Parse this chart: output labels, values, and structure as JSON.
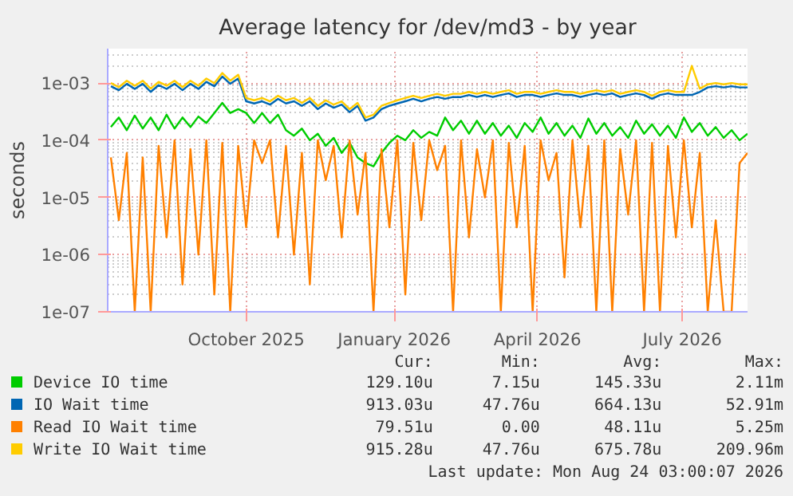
{
  "chart_data": {
    "type": "line",
    "title": "Average latency for /dev/md3 - by year",
    "ylabel": "seconds",
    "log": true,
    "grid": true,
    "legend": "bottom",
    "marker": "none",
    "line_style": "solid",
    "x": [
      "2025-07-20",
      "2025-07-25",
      "2025-07-30",
      "2025-08-04",
      "2025-08-09",
      "2025-08-14",
      "2025-08-19",
      "2025-08-24",
      "2025-08-29",
      "2025-09-03",
      "2025-09-08",
      "2025-09-13",
      "2025-09-18",
      "2025-09-23",
      "2025-09-28",
      "2025-10-03",
      "2025-10-08",
      "2025-10-13",
      "2025-10-18",
      "2025-10-23",
      "2025-10-28",
      "2025-11-02",
      "2025-11-07",
      "2025-11-12",
      "2025-11-17",
      "2025-11-22",
      "2025-11-27",
      "2025-12-02",
      "2025-12-07",
      "2025-12-12",
      "2025-12-17",
      "2025-12-22",
      "2025-12-27",
      "2026-01-01",
      "2026-01-06",
      "2026-01-11",
      "2026-01-16",
      "2026-01-21",
      "2026-01-26",
      "2026-01-31",
      "2026-02-05",
      "2026-02-10",
      "2026-02-15",
      "2026-02-20",
      "2026-02-25",
      "2026-03-02",
      "2026-03-07",
      "2026-03-12",
      "2026-03-17",
      "2026-03-22",
      "2026-03-27",
      "2026-04-01",
      "2026-04-06",
      "2026-04-11",
      "2026-04-16",
      "2026-04-21",
      "2026-04-26",
      "2026-05-01",
      "2026-05-06",
      "2026-05-11",
      "2026-05-16",
      "2026-05-21",
      "2026-05-26",
      "2026-05-31",
      "2026-06-05",
      "2026-06-10",
      "2026-06-15",
      "2026-06-20",
      "2026-06-25",
      "2026-06-30",
      "2026-07-05",
      "2026-07-10",
      "2026-07-15",
      "2026-07-20",
      "2026-07-25",
      "2026-07-30",
      "2026-08-04",
      "2026-08-09",
      "2026-08-14",
      "2026-08-19",
      "2026-08-24"
    ],
    "xlim": [
      "2025-07-18",
      "2026-08-24"
    ],
    "xticks": [
      {
        "value": "2025-10-13",
        "label": "October 2025"
      },
      {
        "value": "2026-01-14",
        "label": "January 2026"
      },
      {
        "value": "2026-04-14",
        "label": "April 2026"
      },
      {
        "value": "2026-07-14",
        "label": "July 2026"
      }
    ],
    "ylim": [
      1e-07,
      0.004
    ],
    "yticks": [
      {
        "value": 1e-07,
        "label": "1e-07"
      },
      {
        "value": 1e-06,
        "label": "1e-06"
      },
      {
        "value": 1e-05,
        "label": "1e-05"
      },
      {
        "value": 0.0001,
        "label": "1e-04"
      },
      {
        "value": 0.001,
        "label": "1e-03"
      }
    ],
    "series": [
      {
        "name": "Device IO time",
        "color": "#00cc00",
        "values": [
          0.00017,
          0.00025,
          0.00015,
          0.00027,
          0.00016,
          0.00025,
          0.00015,
          0.00028,
          0.00016,
          0.00025,
          0.00017,
          0.00026,
          0.0002,
          0.0003,
          0.00045,
          0.0003,
          0.00035,
          0.0003,
          0.0002,
          0.0003,
          0.0002,
          0.00028,
          0.00015,
          0.00012,
          0.00016,
          0.0001,
          0.00013,
          8e-05,
          0.00011,
          6e-05,
          9e-05,
          5e-05,
          4e-05,
          3.5e-05,
          6e-05,
          9e-05,
          0.00012,
          0.0001,
          0.00015,
          0.00011,
          0.00014,
          0.00012,
          0.00025,
          0.00015,
          0.00022,
          0.00013,
          0.00022,
          0.00013,
          0.0002,
          0.00012,
          0.00018,
          0.00011,
          0.0002,
          0.00014,
          0.00025,
          0.00013,
          0.0002,
          0.00012,
          0.00018,
          0.00011,
          0.00024,
          0.00013,
          0.0002,
          0.00012,
          0.00017,
          0.00011,
          0.00022,
          0.00013,
          0.00019,
          0.00012,
          0.00018,
          0.00011,
          0.00025,
          0.00014,
          0.0002,
          0.00012,
          0.00017,
          0.00011,
          0.00015,
          0.0001,
          0.00013
        ]
      },
      {
        "name": "IO Wait time",
        "color": "#0066b3",
        "values": [
          0.00088,
          0.00075,
          0.00097,
          0.00079,
          0.00097,
          0.0007,
          0.00092,
          0.00079,
          0.00097,
          0.00075,
          0.00097,
          0.00079,
          0.00105,
          0.00088,
          0.0013,
          0.00097,
          0.0012,
          0.00048,
          0.00044,
          0.00048,
          0.00042,
          0.00053,
          0.00044,
          0.00048,
          0.0004,
          0.00048,
          0.00035,
          0.00044,
          0.00037,
          0.00042,
          0.00031,
          0.0004,
          0.00022,
          0.00025,
          0.00035,
          0.0004,
          0.00044,
          0.00048,
          0.00053,
          0.00048,
          0.00053,
          0.00057,
          0.00053,
          0.00057,
          0.00057,
          0.00062,
          0.00057,
          0.00062,
          0.00057,
          0.00062,
          0.00066,
          0.00057,
          0.00062,
          0.00062,
          0.00057,
          0.00062,
          0.00066,
          0.00062,
          0.00062,
          0.00057,
          0.00062,
          0.00066,
          0.00062,
          0.00066,
          0.00057,
          0.00062,
          0.00066,
          0.00062,
          0.00053,
          0.00062,
          0.00066,
          0.00062,
          0.00062,
          0.00062,
          0.0007,
          0.00084,
          0.00088,
          0.00084,
          0.00088,
          0.00084,
          0.00084
        ]
      },
      {
        "name": "Read IO Wait time",
        "color": "#ff8000",
        "values": [
          5e-05,
          4e-06,
          6e-05,
          1e-07,
          5e-05,
          1e-07,
          8e-05,
          2e-06,
          0.0001,
          3e-07,
          7e-05,
          1e-06,
          0.0001,
          2e-07,
          9e-05,
          1e-07,
          8e-05,
          3e-06,
          0.0001,
          4e-05,
          0.0001,
          2e-06,
          8e-05,
          1e-06,
          6e-05,
          3e-07,
          0.0001,
          2e-05,
          8e-05,
          2e-06,
          0.0001,
          5e-06,
          6e-05,
          1e-07,
          7e-05,
          3e-06,
          0.0001,
          2e-07,
          9e-05,
          4e-06,
          0.0001,
          3e-05,
          8e-05,
          1e-07,
          0.0001,
          2e-06,
          7e-05,
          1e-05,
          0.0001,
          1e-07,
          9e-05,
          3e-06,
          8e-05,
          1e-07,
          0.0001,
          2e-05,
          6e-05,
          4e-07,
          0.0001,
          3e-06,
          8e-05,
          1e-07,
          0.0001,
          1e-07,
          7e-05,
          5e-06,
          0.0001,
          1e-07,
          9e-05,
          1e-07,
          8e-05,
          2e-06,
          0.0001,
          3e-06,
          6e-05,
          1e-07,
          4e-06,
          1e-07,
          1e-07,
          4e-05,
          6e-05
        ]
      },
      {
        "name": "Write IO Wait time",
        "color": "#ffcc00",
        "values": [
          0.001,
          0.00085,
          0.0011,
          0.0009,
          0.0011,
          0.0008,
          0.00105,
          0.0009,
          0.0011,
          0.00085,
          0.0011,
          0.0009,
          0.0012,
          0.001,
          0.0015,
          0.0011,
          0.0014,
          0.00055,
          0.0005,
          0.00055,
          0.00048,
          0.0006,
          0.0005,
          0.00055,
          0.00045,
          0.00055,
          0.0004,
          0.0005,
          0.00042,
          0.00048,
          0.00035,
          0.00045,
          0.00025,
          0.00028,
          0.0004,
          0.00045,
          0.0005,
          0.00055,
          0.0006,
          0.00055,
          0.0006,
          0.00065,
          0.0006,
          0.00065,
          0.00065,
          0.0007,
          0.00065,
          0.0007,
          0.00065,
          0.0007,
          0.00075,
          0.00065,
          0.0007,
          0.0007,
          0.00065,
          0.0007,
          0.00075,
          0.0007,
          0.0007,
          0.00065,
          0.0007,
          0.00075,
          0.0007,
          0.00075,
          0.00065,
          0.0007,
          0.00075,
          0.0007,
          0.0006,
          0.0007,
          0.00075,
          0.0007,
          0.0007,
          0.002,
          0.0008,
          0.00095,
          0.001,
          0.00095,
          0.001,
          0.00095,
          0.00095
        ]
      }
    ],
    "annotations": [
      "Cur:",
      "Min:",
      "Avg:",
      "Max:",
      "129.10u",
      "7.15u",
      "145.33u",
      "2.11m",
      "913.03u",
      "47.76u",
      "664.13u",
      "52.91m",
      "79.51u",
      "0.00",
      "48.11u",
      "5.25m",
      "915.28u",
      "47.76u",
      "675.78u",
      "209.96m",
      "Last update: Mon Aug 24 03:00:07 2026"
    ]
  }
}
